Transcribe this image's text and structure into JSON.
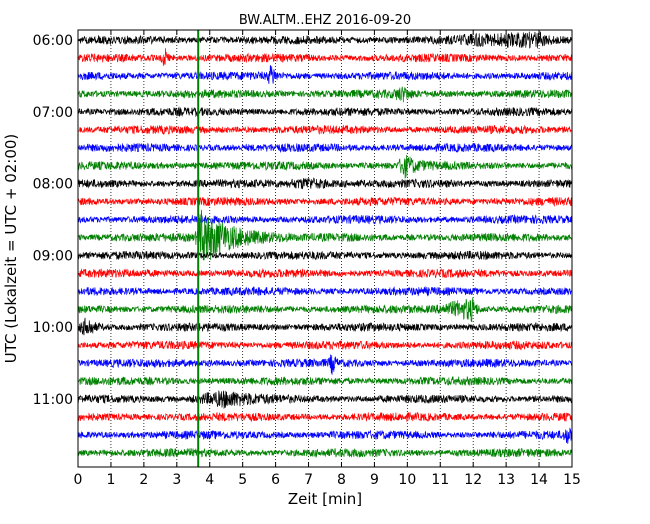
{
  "chart_data": {
    "type": "line",
    "title": "BW.ALTM..EHZ 2016-09-20",
    "xlabel": "Zeit  [min]",
    "ylabel": "UTC (Lokalzeit = UTC + 02:00)",
    "xlim": [
      0,
      15
    ],
    "x_ticks": [
      "0",
      "1",
      "2",
      "3",
      "4",
      "5",
      "6",
      "7",
      "8",
      "9",
      "10",
      "11",
      "12",
      "13",
      "14",
      "15"
    ],
    "y_ticks": [
      "06:00",
      "07:00",
      "08:00",
      "09:00",
      "10:00",
      "11:00"
    ],
    "grid": true,
    "trace_minutes_per_line": 15,
    "trace_colors": [
      "#000000",
      "#ff0000",
      "#0000ff",
      "#008000"
    ],
    "traces_start": "06:00",
    "trace_count": 24,
    "events": [
      {
        "name": "event-1",
        "trace_index": 0,
        "start_min": 11.0,
        "end_min": 15.0,
        "peak_min": 14.0,
        "amplitude": 0.6
      },
      {
        "name": "event-2",
        "trace_index": 1,
        "start_min": 2.5,
        "end_min": 2.8,
        "peak_min": 2.65,
        "amplitude": 0.9
      },
      {
        "name": "event-3",
        "trace_index": 2,
        "start_min": 5.7,
        "end_min": 6.1,
        "peak_min": 5.9,
        "amplitude": 1.0
      },
      {
        "name": "event-4",
        "trace_index": 3,
        "start_min": 9.5,
        "end_min": 10.3,
        "peak_min": 9.9,
        "amplitude": 0.5
      },
      {
        "name": "event-5",
        "trace_index": 7,
        "start_min": 9.7,
        "end_min": 10.8,
        "peak_min": 9.9,
        "amplitude": 1.0
      },
      {
        "name": "event-6",
        "trace_index": 8,
        "start_min": 6.3,
        "end_min": 8.8,
        "peak_min": 7.0,
        "amplitude": 0.4
      },
      {
        "name": "event-7",
        "trace_index": 11,
        "start_min": 3.55,
        "end_min": 6.5,
        "peak_min": 3.75,
        "amplitude": 2.6
      },
      {
        "name": "event-8",
        "trace_index": 15,
        "start_min": 10.8,
        "end_min": 12.3,
        "peak_min": 12.0,
        "amplitude": 1.0
      },
      {
        "name": "event-9",
        "trace_index": 16,
        "start_min": 0.0,
        "end_min": 0.8,
        "peak_min": 0.3,
        "amplitude": 0.9
      },
      {
        "name": "event-10",
        "trace_index": 18,
        "start_min": 7.6,
        "end_min": 7.9,
        "peak_min": 7.75,
        "amplitude": 1.0
      },
      {
        "name": "event-11",
        "trace_index": 20,
        "start_min": 3.3,
        "end_min": 6.5,
        "peak_min": 4.5,
        "amplitude": 0.6
      },
      {
        "name": "event-12",
        "trace_index": 22,
        "start_min": 14.7,
        "end_min": 15.0,
        "peak_min": 14.95,
        "amplitude": 0.8
      }
    ],
    "vertical_marker": {
      "color": "#008000",
      "x_min": 3.65
    }
  }
}
